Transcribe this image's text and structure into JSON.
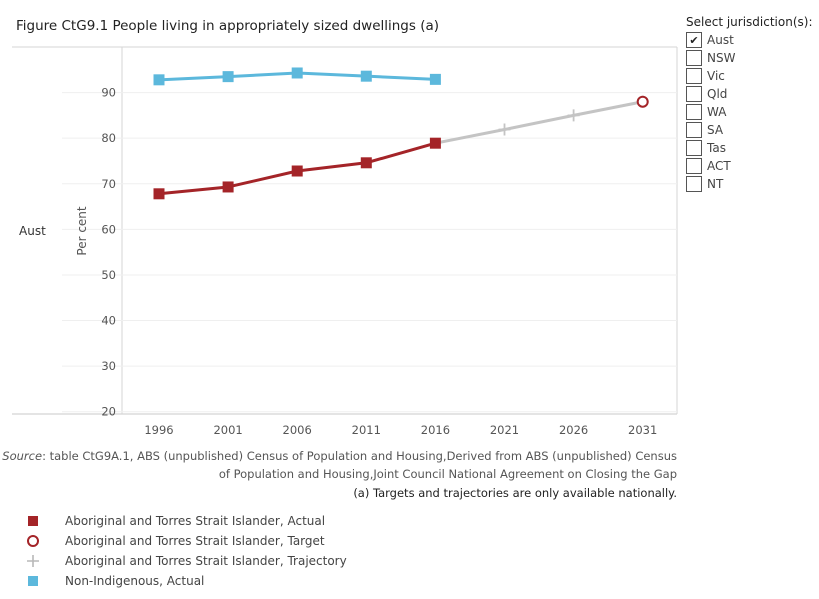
{
  "title": "Figure CtG9.1 People living in appropriately sized dwellings (a)",
  "row_header": "Aust",
  "notes": {
    "source_label": "Source",
    "source_line1": ": table CtG9A.1, ABS (unpublished) Census of Population and Housing,Derived from ABS (unpublished) Census",
    "source_line2": "of Population and Housing,Joint Council National Agreement on Closing the Gap",
    "footnote": "(a) Targets and trajectories are only available nationally."
  },
  "filter": {
    "title": "Select jurisdiction(s):",
    "options": [
      {
        "label": "Aust",
        "checked": true
      },
      {
        "label": "NSW",
        "checked": false
      },
      {
        "label": "Vic",
        "checked": false
      },
      {
        "label": "Qld",
        "checked": false
      },
      {
        "label": "WA",
        "checked": false
      },
      {
        "label": "SA",
        "checked": false
      },
      {
        "label": "Tas",
        "checked": false
      },
      {
        "label": "ACT",
        "checked": false
      },
      {
        "label": "NT",
        "checked": false
      }
    ]
  },
  "legend": [
    {
      "label": "Aboriginal and Torres Strait Islander, Actual",
      "symbol": "square",
      "color": "#a42428"
    },
    {
      "label": "Aboriginal and Torres Strait Islander, Target",
      "symbol": "circle",
      "color": "#a42428"
    },
    {
      "label": "Aboriginal and Torres Strait Islander, Trajectory",
      "symbol": "plus",
      "color": "#b8b8b8"
    },
    {
      "label": "Non-Indigenous, Actual",
      "symbol": "square",
      "color": "#5cb8dc"
    }
  ],
  "chart_data": {
    "type": "line",
    "title": "Figure CtG9.1 People living in appropriately sized dwellings (a)",
    "xlabel": "",
    "ylabel": "Per cent",
    "categories": [
      "1996",
      "2001",
      "2006",
      "2011",
      "2016",
      "2021",
      "2026",
      "2031"
    ],
    "yticks": [
      "20",
      "30",
      "40",
      "50",
      "60",
      "70",
      "80",
      "90"
    ],
    "ylim": [
      19.5,
      100
    ],
    "series": [
      {
        "name": "Non-Indigenous, Actual",
        "color": "#5cb8dc",
        "marker": "square",
        "x": [
          "1996",
          "2001",
          "2006",
          "2011",
          "2016"
        ],
        "values": [
          92.8,
          93.5,
          94.3,
          93.6,
          92.9
        ]
      },
      {
        "name": "Aboriginal and Torres Strait Islander, Actual",
        "color": "#a42428",
        "marker": "square",
        "x": [
          "1996",
          "2001",
          "2006",
          "2011",
          "2016"
        ],
        "values": [
          67.8,
          69.3,
          72.8,
          74.6,
          78.9
        ]
      },
      {
        "name": "Aboriginal and Torres Strait Islander, Trajectory",
        "color": "#c4c4c4",
        "marker": "plus",
        "x": [
          "2016",
          "2021",
          "2026",
          "2031"
        ],
        "values": [
          78.9,
          81.9,
          85.0,
          88.0
        ]
      },
      {
        "name": "Aboriginal and Torres Strait Islander, Target",
        "color": "#a42428",
        "marker": "circle",
        "x": [
          "2031"
        ],
        "values": [
          88.0
        ]
      }
    ]
  }
}
